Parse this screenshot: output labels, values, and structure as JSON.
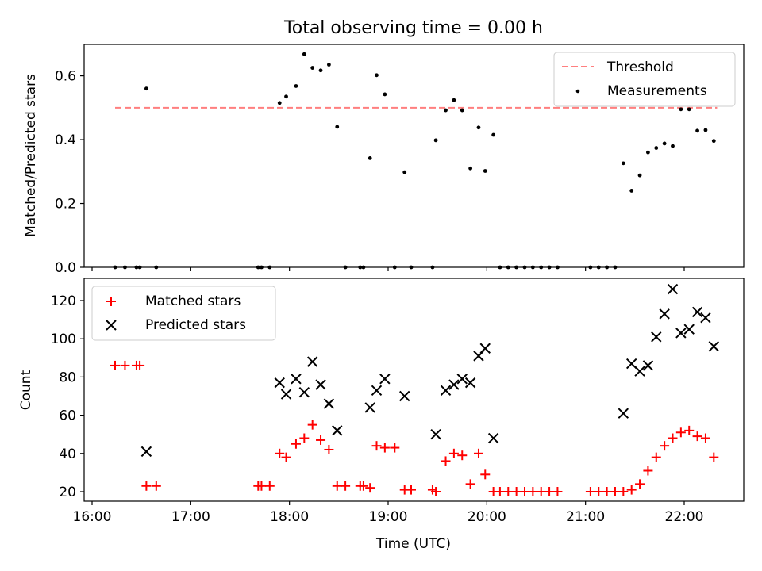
{
  "figure": {
    "title": "Total observing time = 0.00 h",
    "xlabel": "Time (UTC)",
    "x_ticks": [
      "16:00",
      "17:00",
      "18:00",
      "19:00",
      "20:00",
      "21:00",
      "22:00"
    ]
  },
  "chart_data": [
    {
      "type": "scatter",
      "ylabel": "Matched/Predicted stars",
      "ylim": [
        0,
        0.7
      ],
      "xlim": [
        "15:51",
        "22:31"
      ],
      "x_ticks": [
        "16:00",
        "17:00",
        "18:00",
        "19:00",
        "20:00",
        "21:00",
        "22:00"
      ],
      "y_ticks": [
        "0.0",
        "0.2",
        "0.4",
        "0.6"
      ],
      "legend": {
        "position": "top-right",
        "entries": [
          "Threshold",
          "Measurements"
        ]
      },
      "threshold": {
        "name": "Threshold",
        "value": 0.5,
        "x_start": "16:14",
        "x_end": "22:20",
        "color": "#ff7f7f",
        "style": "dashed"
      },
      "series": [
        {
          "name": "Measurements",
          "color": "#000000",
          "points": [
            [
              "16:14",
              0.0
            ],
            [
              "16:20",
              0.0
            ],
            [
              "16:27",
              0.0
            ],
            [
              "16:29",
              0.0
            ],
            [
              "16:33",
              0.56
            ],
            [
              "16:39",
              0.0
            ],
            [
              "17:41",
              0.0
            ],
            [
              "17:43",
              0.0
            ],
            [
              "17:48",
              0.0
            ],
            [
              "17:54",
              0.515
            ],
            [
              "17:58",
              0.535
            ],
            [
              "18:04",
              0.568
            ],
            [
              "18:09",
              0.668
            ],
            [
              "18:14",
              0.625
            ],
            [
              "18:19",
              0.617
            ],
            [
              "18:24",
              0.635
            ],
            [
              "18:29",
              0.44
            ],
            [
              "18:34",
              0.0
            ],
            [
              "18:43",
              0.0
            ],
            [
              "18:45",
              0.0
            ],
            [
              "18:49",
              0.342
            ],
            [
              "18:53",
              0.602
            ],
            [
              "18:58",
              0.542
            ],
            [
              "19:04",
              0.0
            ],
            [
              "19:10",
              0.298
            ],
            [
              "19:14",
              0.0
            ],
            [
              "19:27",
              0.0
            ],
            [
              "19:29",
              0.398
            ],
            [
              "19:35",
              0.492
            ],
            [
              "19:40",
              0.524
            ],
            [
              "19:45",
              0.492
            ],
            [
              "19:50",
              0.31
            ],
            [
              "19:55",
              0.438
            ],
            [
              "19:59",
              0.302
            ],
            [
              "20:04",
              0.415
            ],
            [
              "20:08",
              0.0
            ],
            [
              "20:13",
              0.0
            ],
            [
              "20:18",
              0.0
            ],
            [
              "20:23",
              0.0
            ],
            [
              "20:28",
              0.0
            ],
            [
              "20:33",
              0.0
            ],
            [
              "20:38",
              0.0
            ],
            [
              "20:43",
              0.0
            ],
            [
              "21:03",
              0.0
            ],
            [
              "21:08",
              0.0
            ],
            [
              "21:13",
              0.0
            ],
            [
              "21:18",
              0.0
            ],
            [
              "21:23",
              0.326
            ],
            [
              "21:28",
              0.24
            ],
            [
              "21:33",
              0.288
            ],
            [
              "21:38",
              0.36
            ],
            [
              "21:43",
              0.374
            ],
            [
              "21:48",
              0.388
            ],
            [
              "21:53",
              0.38
            ],
            [
              "21:58",
              0.495
            ],
            [
              "22:03",
              0.495
            ],
            [
              "22:08",
              0.428
            ],
            [
              "22:13",
              0.43
            ],
            [
              "22:18",
              0.396
            ]
          ]
        }
      ]
    },
    {
      "type": "scatter",
      "ylabel": "Count",
      "ylim": [
        15,
        132
      ],
      "xlim": [
        "15:51",
        "22:31"
      ],
      "x_ticks": [
        "16:00",
        "17:00",
        "18:00",
        "19:00",
        "20:00",
        "21:00",
        "22:00"
      ],
      "y_ticks": [
        "20",
        "40",
        "60",
        "80",
        "100",
        "120"
      ],
      "legend": {
        "position": "top-left",
        "entries": [
          "Matched stars",
          "Predicted stars"
        ]
      },
      "series": [
        {
          "name": "Matched stars",
          "marker": "plus",
          "color": "#ff0000",
          "points": [
            [
              "16:14",
              86
            ],
            [
              "16:20",
              86
            ],
            [
              "16:27",
              86
            ],
            [
              "16:29",
              86
            ],
            [
              "16:33",
              23
            ],
            [
              "16:39",
              23
            ],
            [
              "17:41",
              23
            ],
            [
              "17:43",
              23
            ],
            [
              "17:48",
              23
            ],
            [
              "17:54",
              40
            ],
            [
              "17:58",
              38
            ],
            [
              "18:04",
              45
            ],
            [
              "18:09",
              48
            ],
            [
              "18:14",
              55
            ],
            [
              "18:19",
              47
            ],
            [
              "18:24",
              42
            ],
            [
              "18:29",
              23
            ],
            [
              "18:34",
              23
            ],
            [
              "18:43",
              23
            ],
            [
              "18:45",
              23
            ],
            [
              "18:49",
              22
            ],
            [
              "18:53",
              44
            ],
            [
              "18:58",
              43
            ],
            [
              "19:04",
              43
            ],
            [
              "19:10",
              21
            ],
            [
              "19:14",
              21
            ],
            [
              "19:27",
              21
            ],
            [
              "19:29",
              20
            ],
            [
              "19:35",
              36
            ],
            [
              "19:40",
              40
            ],
            [
              "19:45",
              39
            ],
            [
              "19:50",
              24
            ],
            [
              "19:55",
              40
            ],
            [
              "19:59",
              29
            ],
            [
              "20:04",
              20
            ],
            [
              "20:08",
              20
            ],
            [
              "20:13",
              20
            ],
            [
              "20:18",
              20
            ],
            [
              "20:23",
              20
            ],
            [
              "20:28",
              20
            ],
            [
              "20:33",
              20
            ],
            [
              "20:38",
              20
            ],
            [
              "20:43",
              20
            ],
            [
              "21:03",
              20
            ],
            [
              "21:08",
              20
            ],
            [
              "21:13",
              20
            ],
            [
              "21:18",
              20
            ],
            [
              "21:23",
              20
            ],
            [
              "21:28",
              21
            ],
            [
              "21:33",
              24
            ],
            [
              "21:38",
              31
            ],
            [
              "21:43",
              38
            ],
            [
              "21:48",
              44
            ],
            [
              "21:53",
              48
            ],
            [
              "21:58",
              51
            ],
            [
              "22:03",
              52
            ],
            [
              "22:08",
              49
            ],
            [
              "22:13",
              48
            ],
            [
              "22:18",
              38
            ]
          ]
        },
        {
          "name": "Predicted stars",
          "marker": "x",
          "color": "#000000",
          "points": [
            [
              "16:33",
              41
            ],
            [
              "17:54",
              77
            ],
            [
              "17:58",
              71
            ],
            [
              "18:04",
              79
            ],
            [
              "18:09",
              72
            ],
            [
              "18:14",
              88
            ],
            [
              "18:19",
              76
            ],
            [
              "18:24",
              66
            ],
            [
              "18:29",
              52
            ],
            [
              "18:49",
              64
            ],
            [
              "18:53",
              73
            ],
            [
              "18:58",
              79
            ],
            [
              "19:10",
              70
            ],
            [
              "19:29",
              50
            ],
            [
              "19:35",
              73
            ],
            [
              "19:40",
              76
            ],
            [
              "19:45",
              79
            ],
            [
              "19:50",
              77
            ],
            [
              "19:55",
              91
            ],
            [
              "19:59",
              95
            ],
            [
              "20:04",
              48
            ],
            [
              "21:23",
              61
            ],
            [
              "21:28",
              87
            ],
            [
              "21:33",
              83
            ],
            [
              "21:38",
              86
            ],
            [
              "21:43",
              101
            ],
            [
              "21:48",
              113
            ],
            [
              "21:53",
              126
            ],
            [
              "21:58",
              103
            ],
            [
              "22:03",
              105
            ],
            [
              "22:08",
              114
            ],
            [
              "22:13",
              111
            ],
            [
              "22:18",
              96
            ]
          ]
        }
      ]
    }
  ]
}
